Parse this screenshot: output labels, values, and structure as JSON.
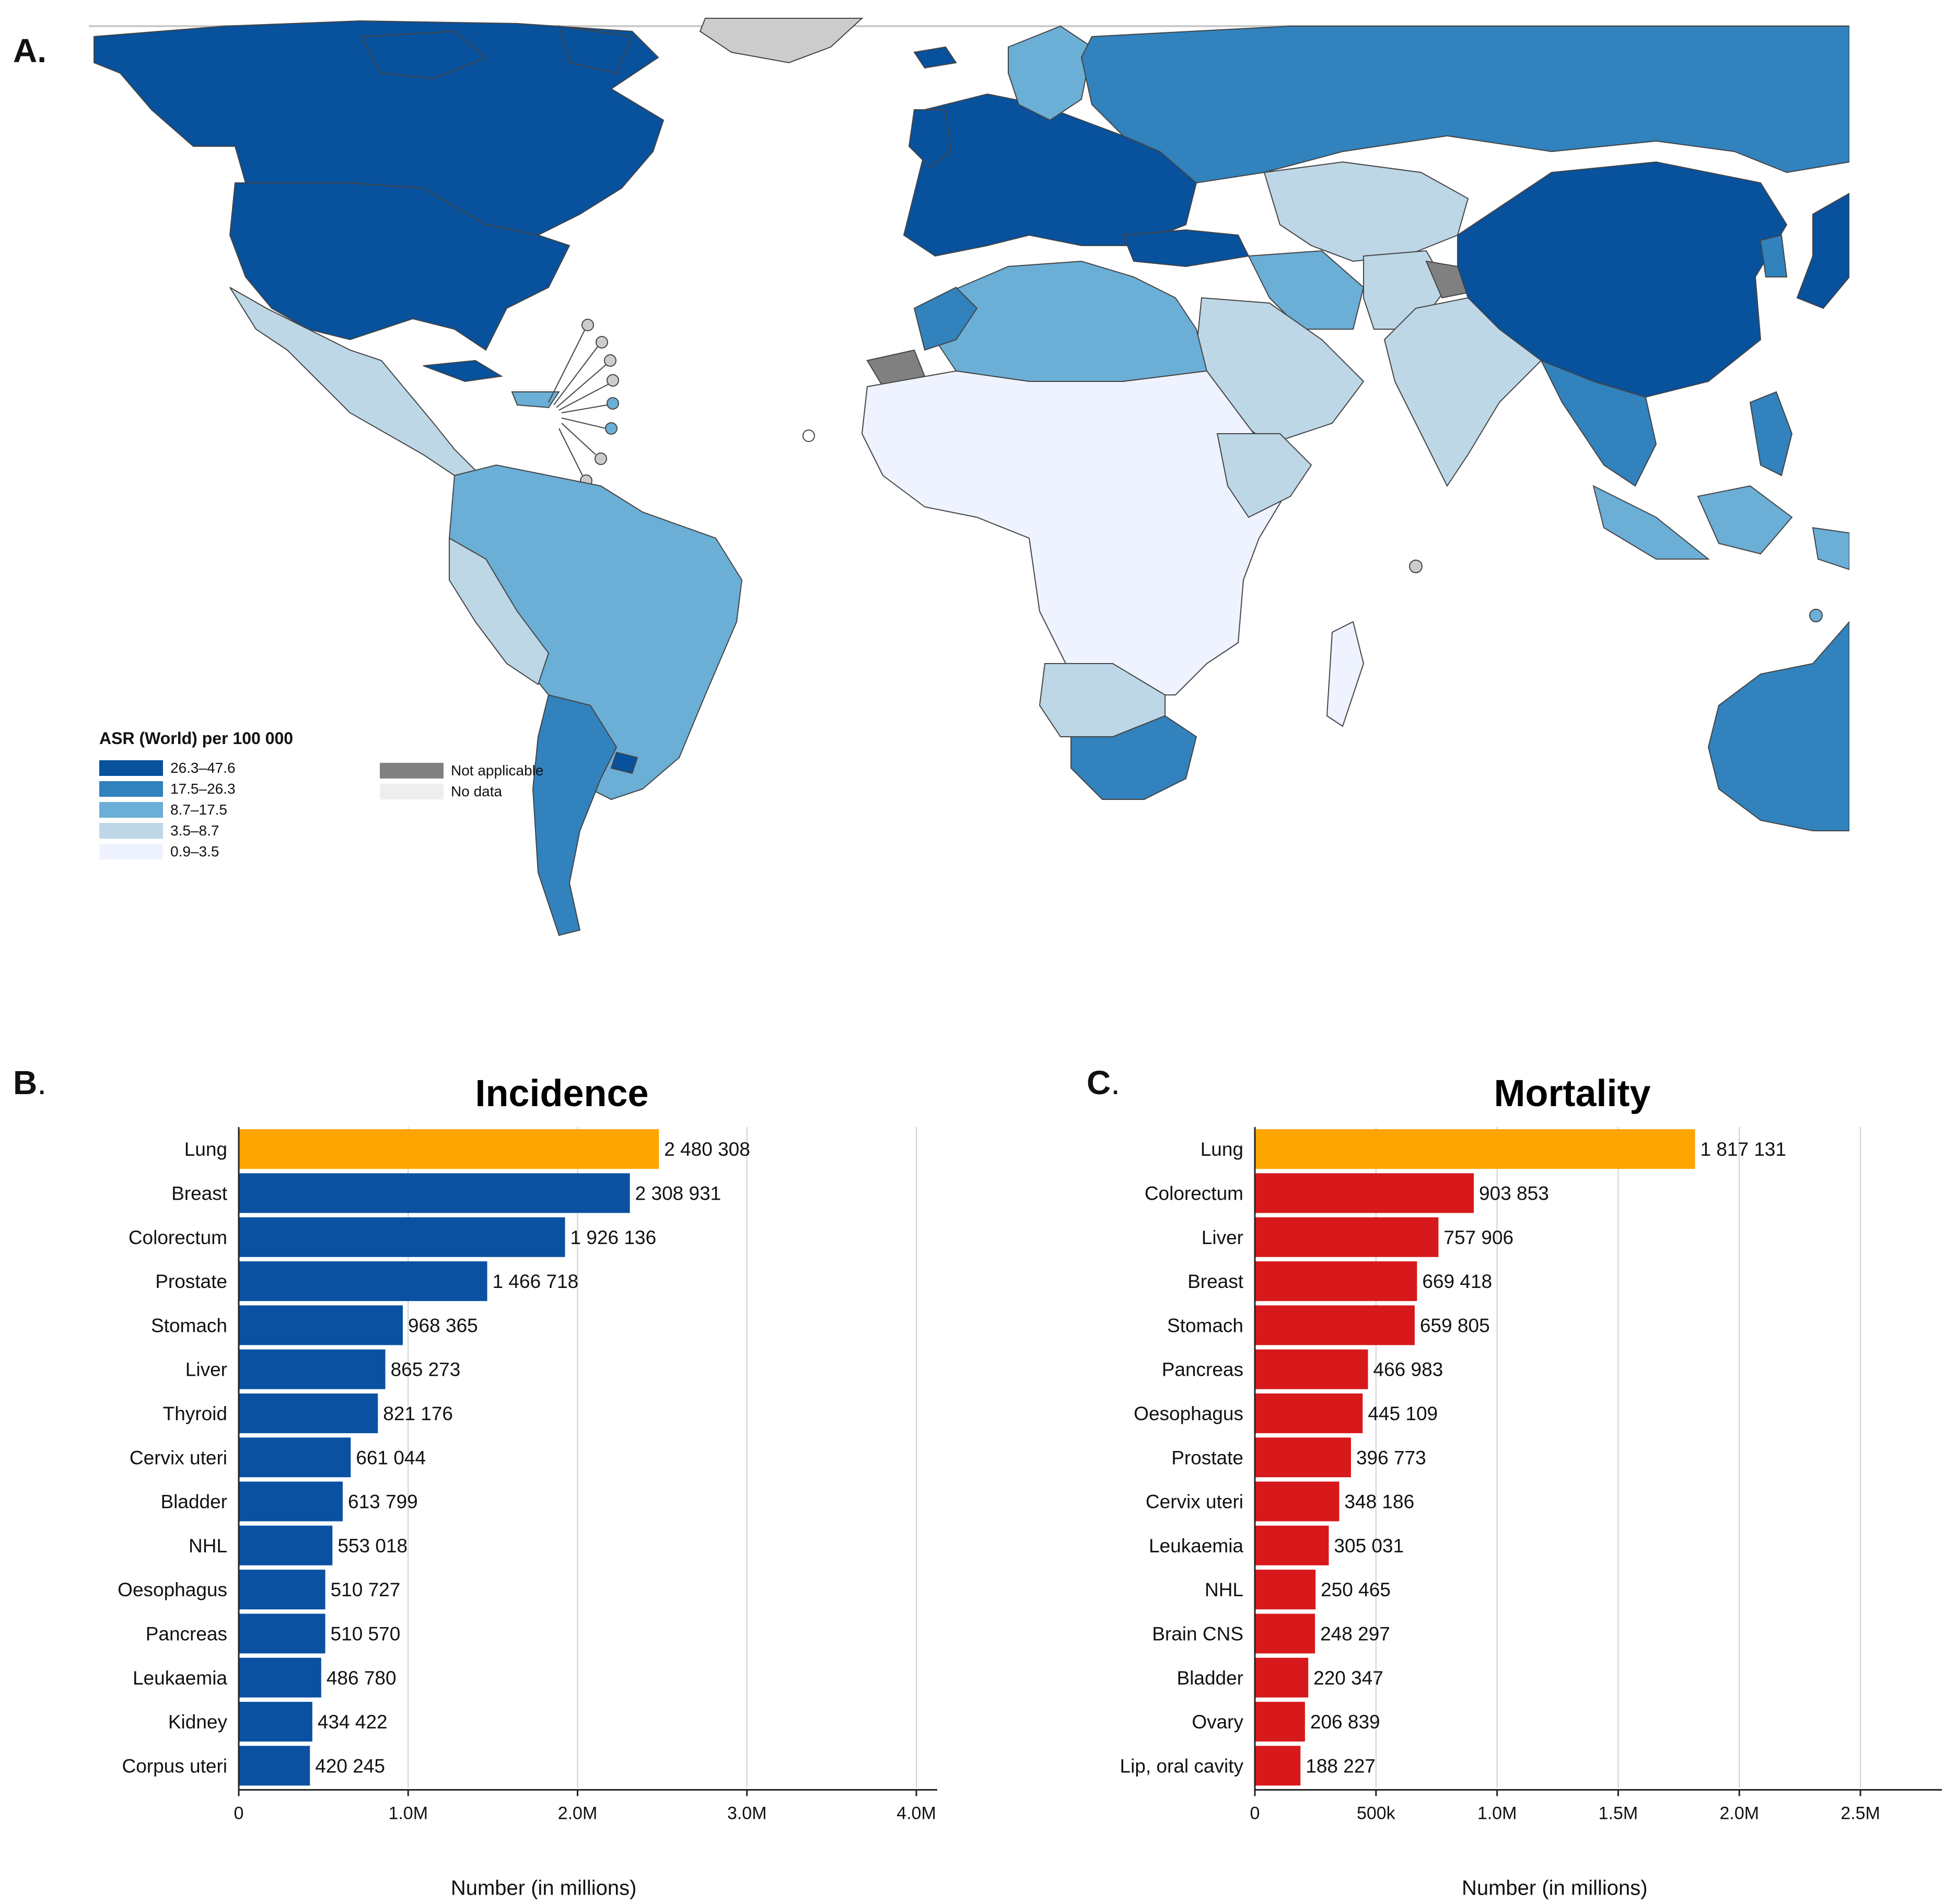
{
  "panels": {
    "a": "A.",
    "b": "B",
    "c": "C",
    "dot": "."
  },
  "map": {
    "legend": {
      "title": "ASR (World) per 100 000",
      "classes": [
        {
          "label": "26.3–47.6",
          "color": "#08519c"
        },
        {
          "label": "17.5–26.3",
          "color": "#3182bd"
        },
        {
          "label": "8.7–17.5",
          "color": "#6baed6"
        },
        {
          "label": "3.5–8.7",
          "color": "#bdd7e7"
        },
        {
          "label": "0.9–3.5",
          "color": "#eff3ff"
        }
      ],
      "extra": [
        {
          "label": "Not applicable",
          "color": "#808080"
        },
        {
          "label": "No data",
          "color": "#eeeeee"
        }
      ]
    },
    "colors": {
      "stroke": "#444444",
      "na": "#808080",
      "nodata": "#cccccc"
    }
  },
  "chart_data": [
    {
      "type": "bar",
      "orientation": "horizontal",
      "title": "Incidence",
      "xlabel": "Number (in millions)",
      "xlim": [
        0,
        4000000
      ],
      "ticks": [
        0,
        1000000,
        2000000,
        3000000,
        4000000
      ],
      "tick_labels": [
        "0",
        "1.0M",
        "2.0M",
        "3.0M",
        "4.0M"
      ],
      "highlight_color": "#ffa500",
      "bar_color": "#0a51a2",
      "categories": [
        "Lung",
        "Breast",
        "Colorectum",
        "Prostate",
        "Stomach",
        "Liver",
        "Thyroid",
        "Cervix uteri",
        "Bladder",
        "NHL",
        "Oesophagus",
        "Pancreas",
        "Leukaemia",
        "Kidney",
        "Corpus uteri"
      ],
      "values": [
        2480308,
        2308931,
        1926136,
        1466718,
        968365,
        865273,
        821176,
        661044,
        613799,
        553018,
        510727,
        510570,
        486780,
        434422,
        420245
      ],
      "value_labels": [
        "2 480 308",
        "2 308 931",
        "1 926 136",
        "1 466 718",
        "968 365",
        "865 273",
        "821 176",
        "661 044",
        "613 799",
        "553 018",
        "510 727",
        "510 570",
        "486 780",
        "434 422",
        "420 245"
      ]
    },
    {
      "type": "bar",
      "orientation": "horizontal",
      "title": "Mortality",
      "xlabel": "Number (in millions)",
      "xlim": [
        0,
        2750000
      ],
      "ticks": [
        0,
        500000,
        1000000,
        1500000,
        2000000,
        2500000
      ],
      "tick_labels": [
        "0",
        "500k",
        "1.0M",
        "1.5M",
        "2.0M",
        "2.5M"
      ],
      "highlight_color": "#ffa500",
      "bar_color": "#d7191c",
      "categories": [
        "Lung",
        "Colorectum",
        "Liver",
        "Breast",
        "Stomach",
        "Pancreas",
        "Oesophagus",
        "Prostate",
        "Cervix uteri",
        "Leukaemia",
        "NHL",
        "Brain CNS",
        "Bladder",
        "Ovary",
        "Lip, oral cavity"
      ],
      "values": [
        1817131,
        903853,
        757906,
        669418,
        659805,
        466983,
        445109,
        396773,
        348186,
        305031,
        250465,
        248297,
        220347,
        206839,
        188227
      ],
      "value_labels": [
        "1 817 131",
        "903 853",
        "757 906",
        "669 418",
        "659 805",
        "466 983",
        "445 109",
        "396 773",
        "348 186",
        "305 031",
        "250 465",
        "248 297",
        "220 347",
        "206 839",
        "188 227"
      ]
    }
  ]
}
